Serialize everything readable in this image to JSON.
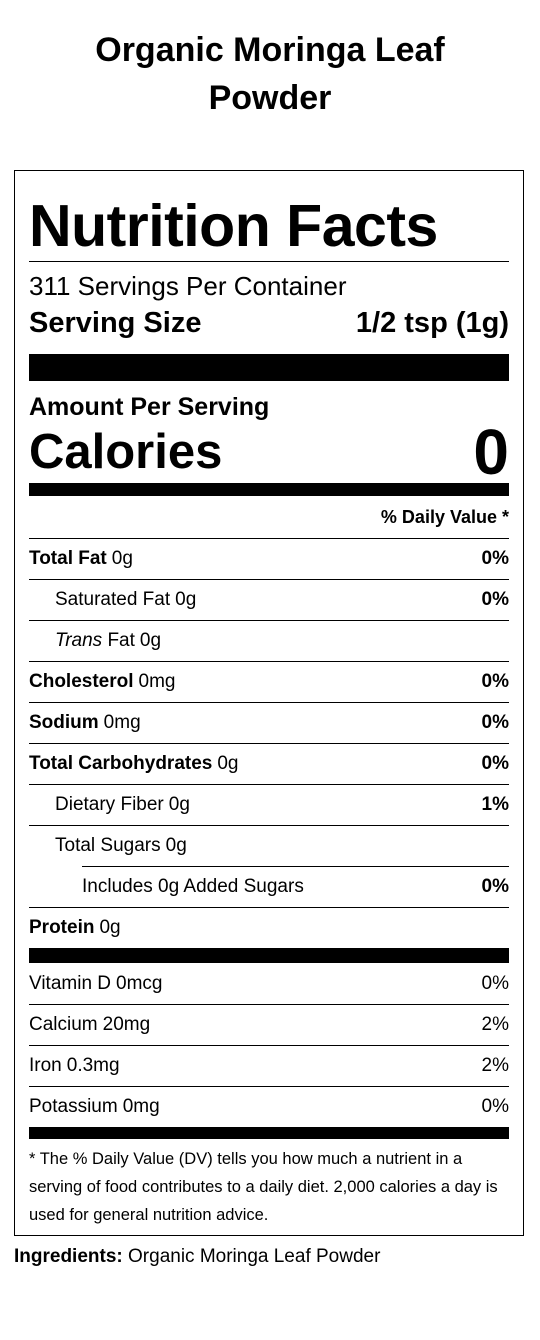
{
  "title": "Organic Moringa Leaf Powder",
  "label": {
    "heading": "Nutrition Facts",
    "servings_per_container": "311 Servings Per Container",
    "serving_size": {
      "label": "Serving Size",
      "value": "1/2 tsp (1g)"
    },
    "amount_per_serving": "Amount Per Serving",
    "calories": {
      "label": "Calories",
      "value": "0"
    },
    "daily_value_header": "% Daily Value *",
    "nutrients": [
      {
        "name": "Total Fat",
        "amount": "0g",
        "dv": "0%",
        "children": [
          {
            "name": "Saturated Fat",
            "amount": "0g",
            "dv": "0%"
          },
          {
            "name_italic": "Trans",
            "name": "Fat",
            "amount": "0g"
          }
        ]
      },
      {
        "name": "Cholesterol",
        "amount": "0mg",
        "dv": "0%"
      },
      {
        "name": "Sodium",
        "amount": "0mg",
        "dv": "0%"
      },
      {
        "name": "Total Carbohydrates",
        "amount": "0g",
        "dv": "0%",
        "children": [
          {
            "name": "Dietary Fiber",
            "amount": "0g",
            "dv": "1%"
          },
          {
            "name": "Total Sugars",
            "amount": "0g",
            "children": [
              {
                "name": "Includes 0g Added Sugars",
                "dv": "0%"
              }
            ]
          }
        ]
      },
      {
        "name": "Protein",
        "amount": "0g"
      }
    ],
    "vitamins": [
      {
        "name": "Vitamin D",
        "amount": "0mcg",
        "dv": "0%"
      },
      {
        "name": "Calcium",
        "amount": "20mg",
        "dv": "2%"
      },
      {
        "name": "Iron",
        "amount": "0.3mg",
        "dv": "2%"
      },
      {
        "name": "Potassium",
        "amount": "0mg",
        "dv": "0%"
      }
    ],
    "footnote": "* The % Daily Value (DV) tells you how much a nutrient in a serving of food contributes to a daily diet. 2,000 calories a day is used for general nutrition advice."
  },
  "ingredients": {
    "label": "Ingredients:",
    "text": "Organic Moringa Leaf Powder"
  }
}
